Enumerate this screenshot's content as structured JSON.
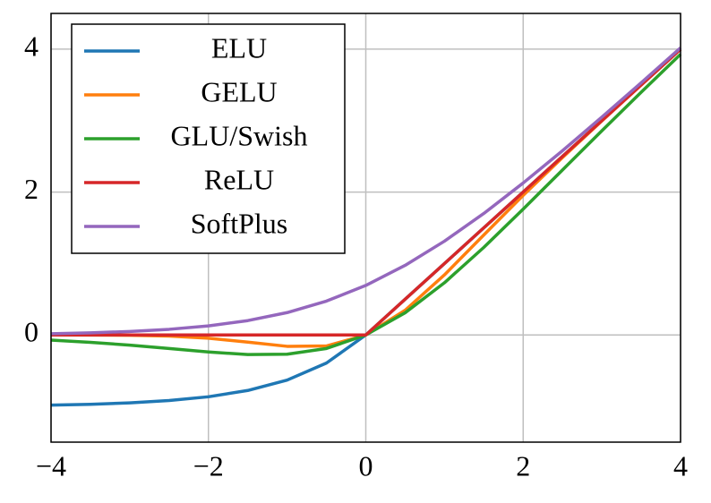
{
  "chart_data": {
    "type": "line",
    "x": [
      -4,
      -3.5,
      -3,
      -2.5,
      -2,
      -1.5,
      -1,
      -0.5,
      0,
      0.5,
      1,
      1.5,
      2,
      2.5,
      3,
      3.5,
      4
    ],
    "series": [
      {
        "name": "ELU",
        "color": "#1f77b4",
        "values": [
          -0.982,
          -0.97,
          -0.95,
          -0.918,
          -0.865,
          -0.777,
          -0.632,
          -0.393,
          0,
          0.5,
          1,
          1.5,
          2,
          2.5,
          3,
          3.5,
          4
        ]
      },
      {
        "name": "GELU",
        "color": "#ff7f0e",
        "values": [
          -0.0001,
          -0.0008,
          -0.004,
          -0.016,
          -0.046,
          -0.1,
          -0.159,
          -0.154,
          0,
          0.346,
          0.841,
          1.4,
          1.954,
          2.484,
          2.996,
          3.499,
          4
        ]
      },
      {
        "name": "GLU/Swish",
        "color": "#2ca02c",
        "values": [
          -0.072,
          -0.103,
          -0.142,
          -0.19,
          -0.238,
          -0.274,
          -0.269,
          -0.189,
          0,
          0.311,
          0.731,
          1.226,
          1.762,
          2.31,
          2.858,
          3.397,
          3.928
        ]
      },
      {
        "name": "ReLU",
        "color": "#d62728",
        "values": [
          0,
          0,
          0,
          0,
          0,
          0,
          0,
          0,
          0,
          0.5,
          1,
          1.5,
          2,
          2.5,
          3,
          3.5,
          4
        ]
      },
      {
        "name": "SoftPlus",
        "color": "#9467bd",
        "values": [
          0.018,
          0.03,
          0.049,
          0.079,
          0.127,
          0.201,
          0.313,
          0.474,
          0.693,
          0.974,
          1.313,
          1.701,
          2.127,
          2.579,
          3.049,
          3.53,
          4.018
        ]
      }
    ],
    "xlim": [
      -4,
      4
    ],
    "xticks": [
      {
        "value": -4,
        "label": "−4"
      },
      {
        "value": -2,
        "label": "−2"
      },
      0,
      2,
      4
    ],
    "ylim": [
      -1.5,
      4.5
    ],
    "yticks": [
      0,
      2,
      4
    ],
    "grid": true,
    "legend": "upper-left"
  }
}
